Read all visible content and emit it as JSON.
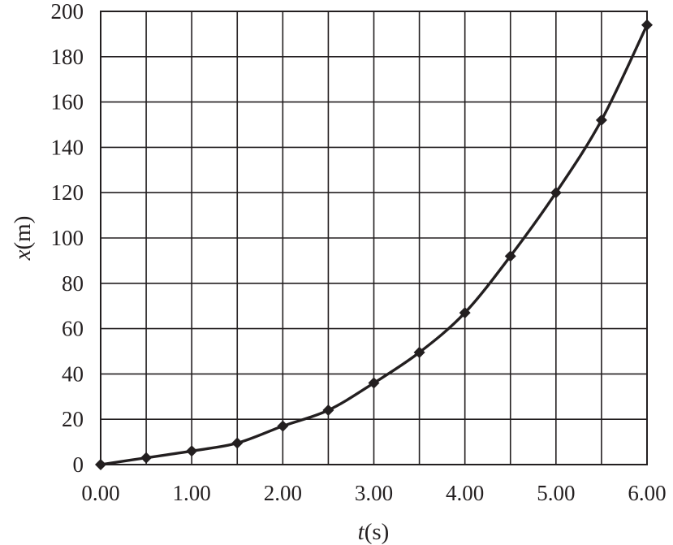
{
  "chart_data": {
    "type": "line",
    "xlabel": {
      "var": "t",
      "unit": "(s)"
    },
    "ylabel": {
      "var": "x",
      "unit": "(m)"
    },
    "xlim": [
      0,
      6
    ],
    "ylim": [
      0,
      200
    ],
    "grid": true,
    "x_ticks": [
      "0.00",
      "1.00",
      "2.00",
      "3.00",
      "4.00",
      "5.00",
      "6.00"
    ],
    "y_ticks": [
      "0",
      "20",
      "40",
      "60",
      "80",
      "100",
      "120",
      "140",
      "160",
      "180",
      "200"
    ],
    "x_tick_values": [
      0,
      1,
      2,
      3,
      4,
      5,
      6
    ],
    "y_tick_values": [
      0,
      20,
      40,
      60,
      80,
      100,
      120,
      140,
      160,
      180,
      200
    ],
    "x_minor_grid": [
      0.5,
      1.5,
      2.5,
      3.5,
      4.5,
      5.5
    ],
    "series": [
      {
        "marker": "diamond",
        "color": "#231f20",
        "x": [
          0,
          0.5,
          1.0,
          1.5,
          2.0,
          2.5,
          3.0,
          3.5,
          4.0,
          4.5,
          5.0,
          5.5,
          6.0
        ],
        "y": [
          0,
          3,
          6,
          9.5,
          17,
          24,
          36,
          49.5,
          67,
          92,
          120,
          152,
          194
        ]
      }
    ]
  }
}
